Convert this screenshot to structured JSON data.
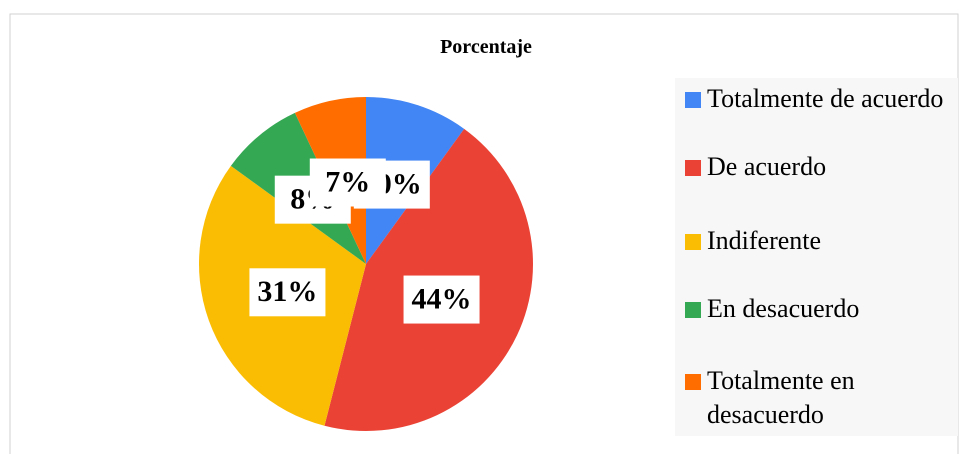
{
  "chart_data": {
    "type": "pie",
    "title": "Porcentaje",
    "categories": [
      "Totalmente de acuerdo",
      "De acuerdo",
      "Indiferente",
      "En desacuerdo",
      "Totalmente en desacuerdo"
    ],
    "values": [
      10,
      44,
      31,
      8,
      7
    ],
    "value_labels": [
      "10%",
      "44%",
      "31%",
      "8%",
      "7%"
    ],
    "colors": [
      "#4285f4",
      "#ea4335",
      "#fbbc04",
      "#34a853",
      "#ff6d01"
    ],
    "legend": "right"
  }
}
